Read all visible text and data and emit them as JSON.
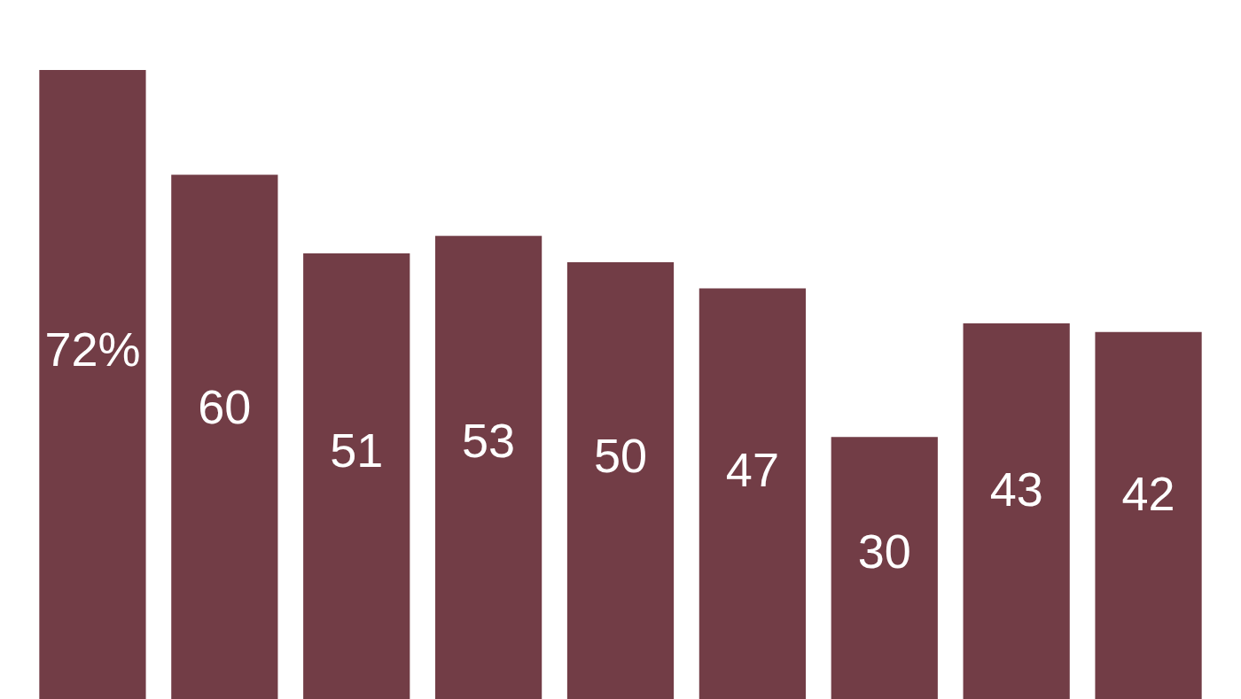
{
  "chart_data": {
    "type": "bar",
    "categories": [
      null,
      null,
      null,
      null,
      null,
      null,
      null,
      null,
      null
    ],
    "values": [
      72,
      60,
      51,
      53,
      50,
      47,
      30,
      43,
      42
    ],
    "value_labels": [
      "72%",
      "60",
      "51",
      "53",
      "50",
      "47",
      "30",
      "43",
      "42"
    ],
    "color": "#723d46"
  }
}
